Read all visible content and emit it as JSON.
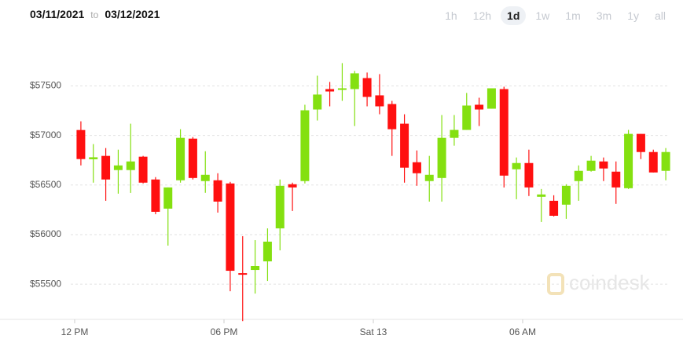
{
  "header": {
    "from": "03/11/2021",
    "to_word": "to",
    "to": "03/12/2021",
    "ranges": [
      "1h",
      "12h",
      "1d",
      "1w",
      "1m",
      "3m",
      "1y",
      "all"
    ],
    "active_range": 2
  },
  "watermark": "coindesk",
  "chart_data": {
    "type": "candlestick",
    "up_color": "#84e010",
    "down_color": "#ff1010",
    "x": [
      0.25,
      0.75,
      1.25,
      1.75,
      2.25,
      2.75,
      3.25,
      3.75,
      4.25,
      4.75,
      5.25,
      5.75,
      6.25,
      6.75,
      7.25,
      7.75,
      8.25,
      8.75,
      9.25,
      9.75,
      10.25,
      10.75,
      11.25,
      11.75,
      12.25,
      12.75,
      13.25,
      13.75,
      14.25,
      14.75,
      15.25,
      15.75,
      16.25,
      16.75,
      17.25,
      17.75,
      18.25,
      18.75,
      19.25,
      19.75,
      20.25,
      20.75,
      21.25,
      21.75,
      22.25,
      22.75,
      23.25,
      23.75
    ],
    "open": [
      57055,
      56760,
      56794,
      56651,
      56651,
      56786,
      56556,
      56262,
      56548,
      56968,
      56540,
      56548,
      56516,
      55611,
      55643,
      55730,
      56063,
      56508,
      56540,
      57262,
      57468,
      57460,
      57468,
      57579,
      57405,
      57317,
      57119,
      56730,
      56540,
      56571,
      56976,
      57056,
      57310,
      57270,
      57468,
      56659,
      56722,
      56381,
      56341,
      56302,
      56540,
      56643,
      56738,
      56635,
      56468,
      57016,
      56833,
      56643
    ],
    "close": [
      56762,
      56780,
      56556,
      56698,
      56738,
      56524,
      56230,
      56476,
      56976,
      56571,
      56603,
      56333,
      55635,
      55595,
      55683,
      55929,
      56492,
      56476,
      57254,
      57413,
      57444,
      57476,
      57627,
      57389,
      57294,
      57063,
      56675,
      56619,
      56603,
      56976,
      57056,
      57302,
      57262,
      57476,
      56595,
      56722,
      56476,
      56405,
      56190,
      56492,
      56643,
      56746,
      56667,
      56476,
      57016,
      56833,
      56627,
      56833
    ],
    "high": [
      57143,
      56913,
      56873,
      56857,
      57119,
      56794,
      56580,
      56476,
      57063,
      56984,
      56841,
      56619,
      56532,
      55984,
      55944,
      56063,
      56556,
      56524,
      57310,
      57603,
      57540,
      57730,
      57651,
      57635,
      57619,
      57349,
      57214,
      56849,
      56794,
      57206,
      57206,
      57429,
      57381,
      57476,
      57492,
      56778,
      56857,
      56460,
      56397,
      56508,
      56698,
      56794,
      56778,
      56738,
      57056,
      57016,
      56857,
      56873
    ],
    "low": [
      56698,
      56524,
      56341,
      56413,
      56420,
      56516,
      56206,
      55889,
      56524,
      56556,
      56421,
      56222,
      55429,
      55127,
      55405,
      55532,
      55841,
      56238,
      56516,
      57151,
      57294,
      57349,
      57095,
      57294,
      57214,
      56794,
      56524,
      56492,
      56333,
      56333,
      56897,
      57056,
      57095,
      57270,
      56476,
      56357,
      56389,
      56127,
      56183,
      56159,
      56341,
      56635,
      56540,
      56310,
      56460,
      56762,
      56627,
      56548
    ],
    "xlim": [
      -3,
      24
    ],
    "xticks": [
      {
        "value": 0,
        "label": "12 PM"
      },
      {
        "value": 6,
        "label": "06 PM"
      },
      {
        "value": 12,
        "label": "Sat 13"
      },
      {
        "value": 18,
        "label": "06 AM"
      }
    ],
    "ylim": [
      55200,
      58050
    ],
    "yticks": [
      {
        "value": 55500,
        "label": "$55500"
      },
      {
        "value": 56000,
        "label": "$56000"
      },
      {
        "value": 56500,
        "label": "$56500"
      },
      {
        "value": 57000,
        "label": "$57000"
      },
      {
        "value": 57500,
        "label": "$57500"
      }
    ],
    "grid": true
  }
}
